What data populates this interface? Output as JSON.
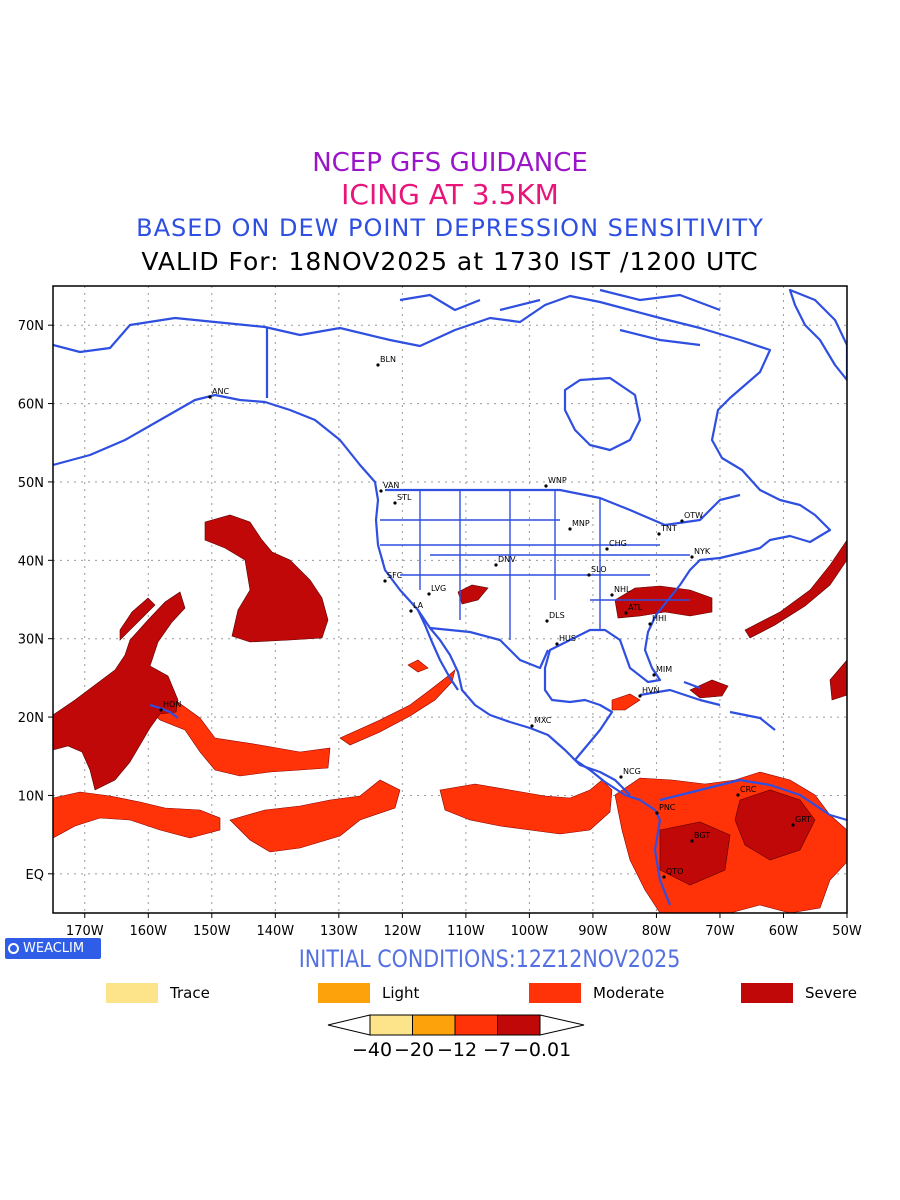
{
  "titles": {
    "line1": "NCEP GFS GUIDANCE",
    "line2": "ICING AT 3.5KM",
    "line3": "BASED ON DEW POINT DEPRESSION SENSITIVITY",
    "line4": "VALID For: 18NOV2025 at 1730 IST /1200 UTC"
  },
  "colors": {
    "line1": "#9a14c8",
    "line2": "#e8157a",
    "line3": "#2f4fe0",
    "line4": "#000000",
    "coast": "#2f4fe0",
    "logo_bg": "#2f5de8",
    "init": "#5570e0",
    "trace": "#fde38a",
    "light": "#fda20a",
    "moderate": "#ff3208",
    "severe": "#c00808"
  },
  "map": {
    "lat_labels": [
      "70N",
      "60N",
      "50N",
      "40N",
      "30N",
      "20N",
      "10N",
      "EQ"
    ],
    "lon_labels": [
      "170W",
      "160W",
      "150W",
      "140W",
      "130W",
      "120W",
      "110W",
      "100W",
      "90W",
      "80W",
      "70W",
      "60W",
      "50W"
    ],
    "extent": {
      "lon_min": -175,
      "lon_max": -50,
      "lat_min": -5,
      "lat_max": 75
    },
    "stations": [
      {
        "code": "ANC"
      },
      {
        "code": "BLN"
      },
      {
        "code": "VAN"
      },
      {
        "code": "STL"
      },
      {
        "code": "WNP"
      },
      {
        "code": "MNP"
      },
      {
        "code": "TNT"
      },
      {
        "code": "OTW"
      },
      {
        "code": "CHG"
      },
      {
        "code": "NYK"
      },
      {
        "code": "DNV"
      },
      {
        "code": "SFC"
      },
      {
        "code": "SLO"
      },
      {
        "code": "LVG"
      },
      {
        "code": "LA"
      },
      {
        "code": "NHL"
      },
      {
        "code": "ATL"
      },
      {
        "code": "DLS"
      },
      {
        "code": "HHI"
      },
      {
        "code": "HUS"
      },
      {
        "code": "MIM"
      },
      {
        "code": "HVN"
      },
      {
        "code": "HON"
      },
      {
        "code": "MXC"
      },
      {
        "code": "NCG"
      },
      {
        "code": "PNC"
      },
      {
        "code": "CRC"
      },
      {
        "code": "BGT"
      },
      {
        "code": "GRT"
      },
      {
        "code": "QTO"
      }
    ]
  },
  "logo": "WEACLIM",
  "initial_conditions": "INITIAL CONDITIONS:12Z12NOV2025",
  "legend": [
    {
      "label": "Trace",
      "color": "#fde38a"
    },
    {
      "label": "Light",
      "color": "#fda20a"
    },
    {
      "label": "Moderate",
      "color": "#ff3208"
    },
    {
      "label": "Severe",
      "color": "#c00808"
    }
  ],
  "colorbar": {
    "colors": [
      "#fde38a",
      "#fda20a",
      "#ff3208",
      "#c00808"
    ],
    "labels": [
      "−40",
      "−20",
      "−12",
      "−7",
      "−0.01"
    ]
  }
}
